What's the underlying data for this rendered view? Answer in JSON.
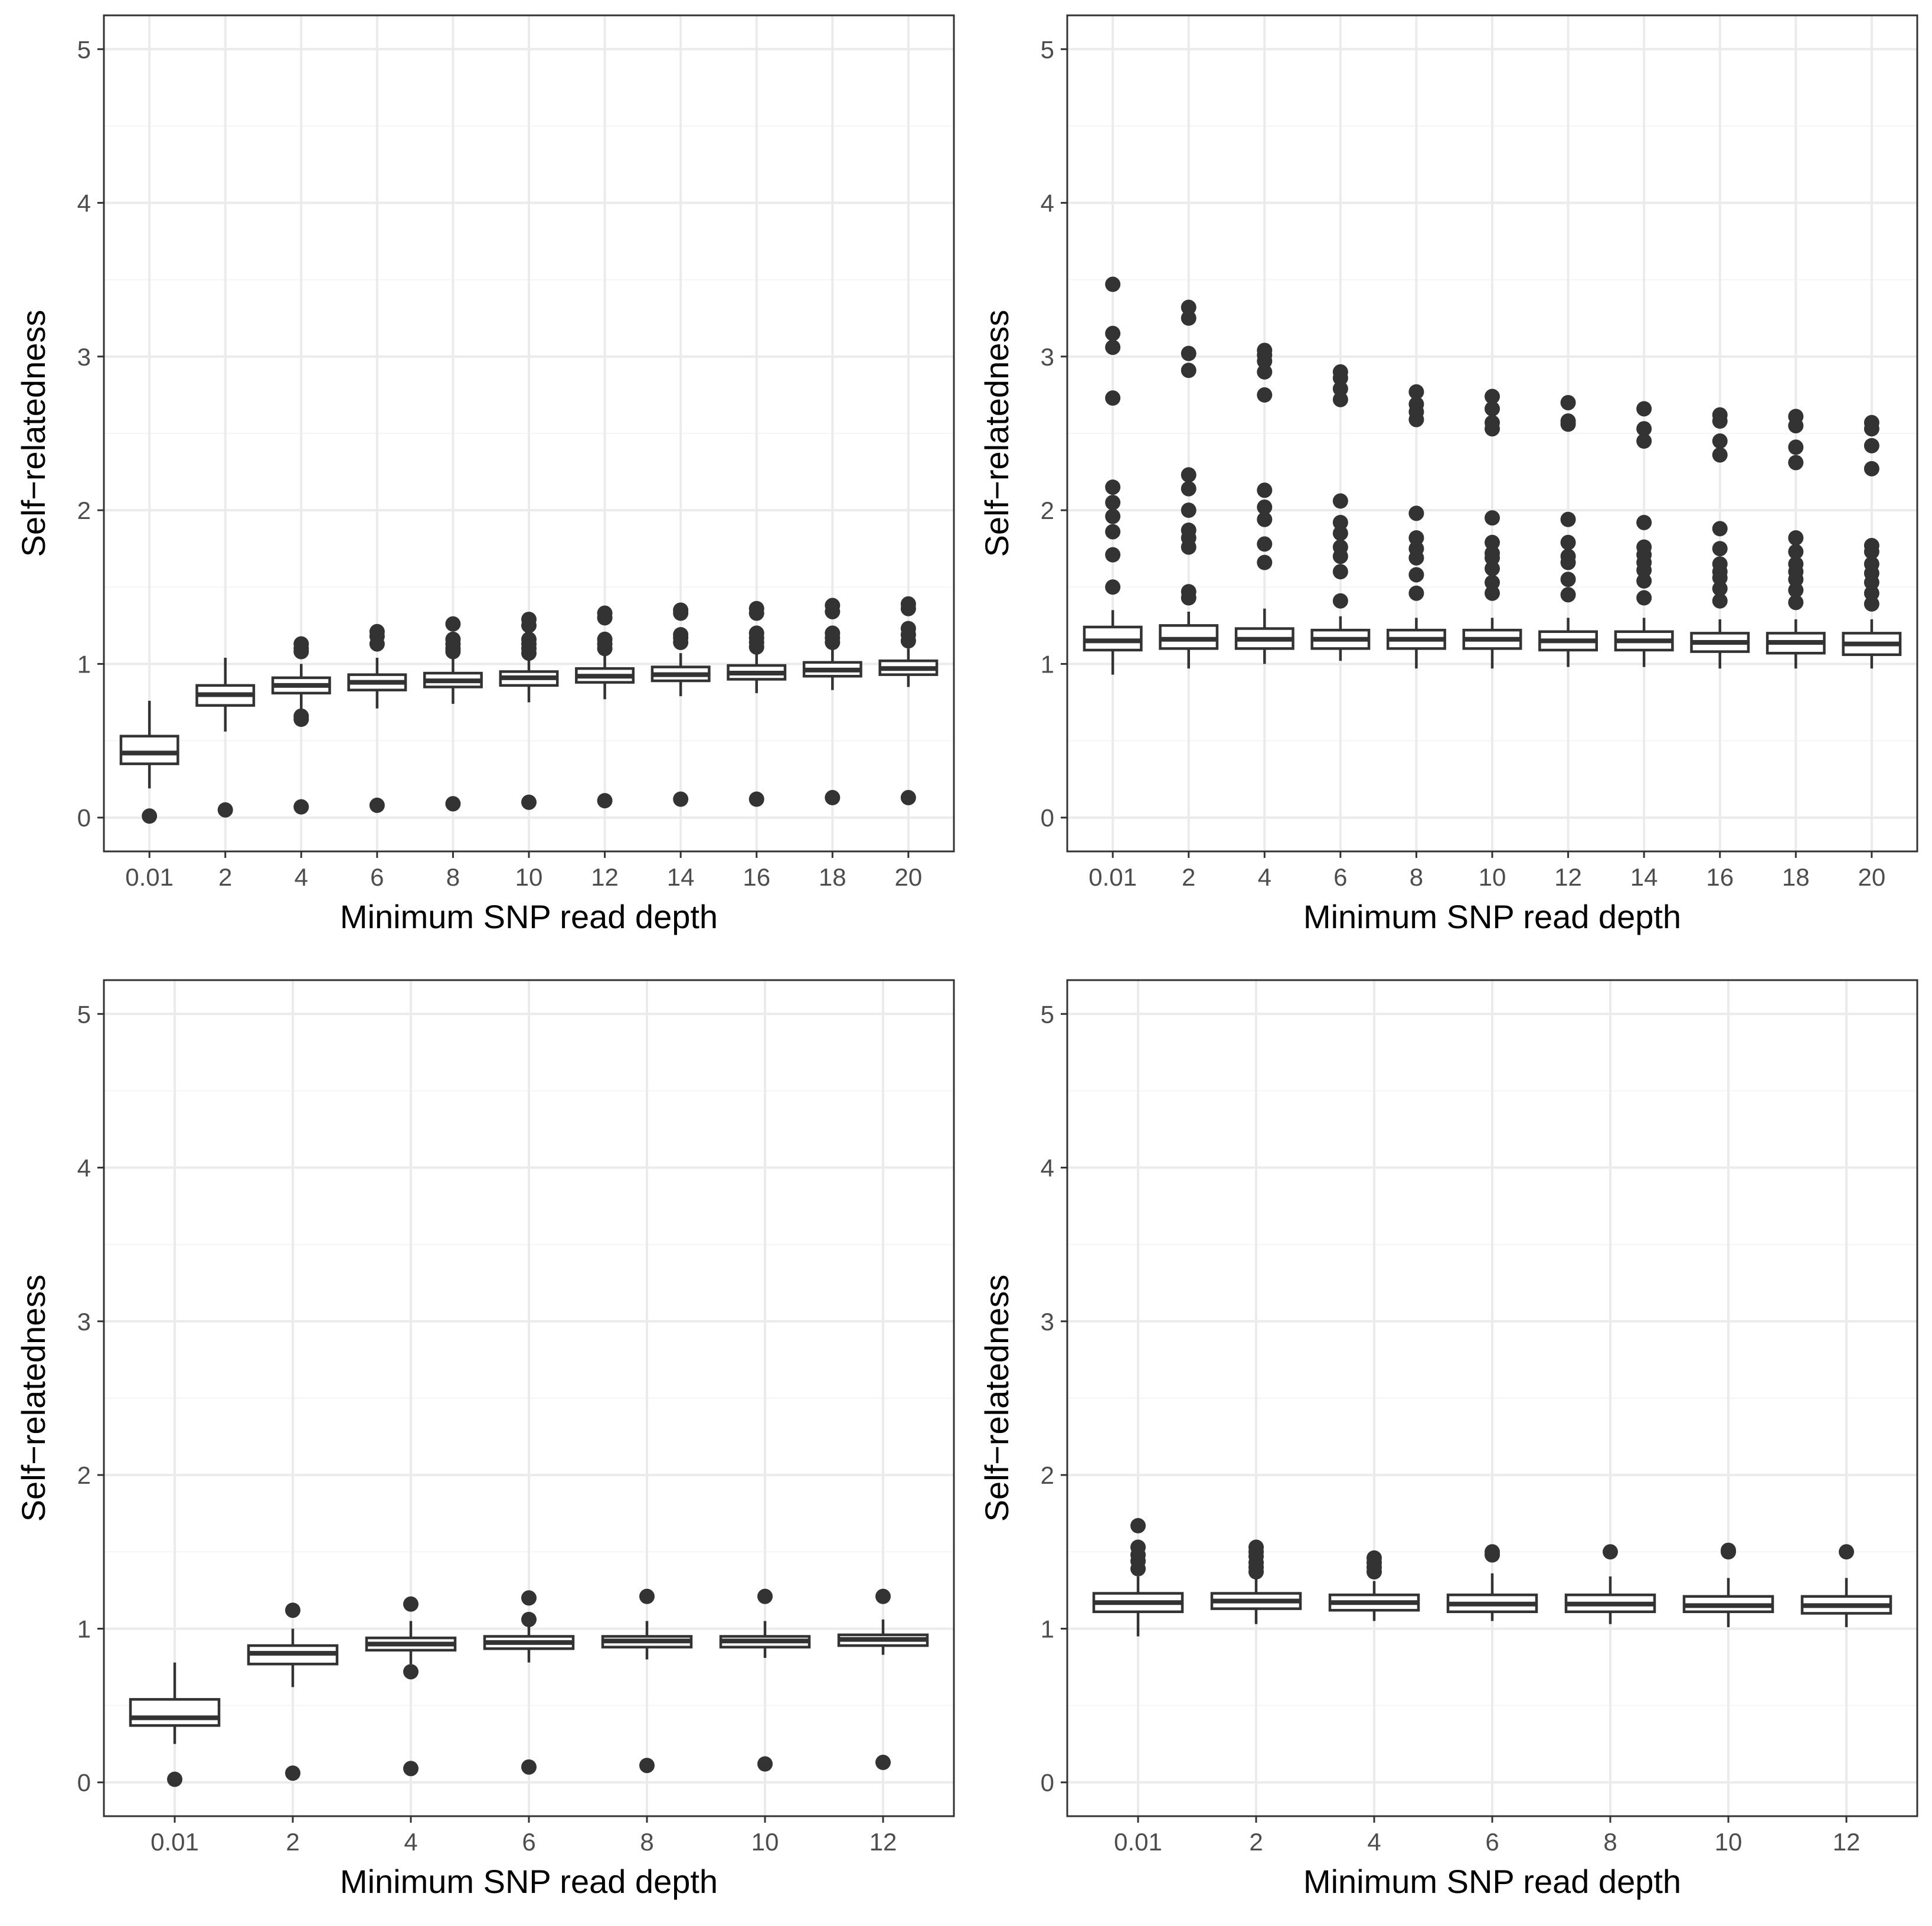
{
  "colors": {
    "background": "#ffffff",
    "panel_border": "#333333",
    "grid_major": "#ebebeb",
    "grid_minor": "#f5f5f5",
    "box_stroke": "#333333",
    "box_fill": "#ffffff",
    "point": "#333333"
  },
  "chart_data": [
    {
      "type": "box",
      "panel": "top-left",
      "xlabel": "Minimum SNP read depth",
      "ylabel": "Self−relatedness",
      "ylim": [
        -0.22,
        5.22
      ],
      "yticks": [
        "0",
        "1",
        "2",
        "3",
        "4",
        "5"
      ],
      "categories": [
        "0.01",
        "2",
        "4",
        "6",
        "8",
        "10",
        "12",
        "14",
        "16",
        "18",
        "20"
      ],
      "boxes": [
        {
          "min": 0.19,
          "q1": 0.35,
          "median": 0.42,
          "q3": 0.53,
          "max": 0.76,
          "outliers": [
            0.01
          ]
        },
        {
          "min": 0.56,
          "q1": 0.73,
          "median": 0.8,
          "q3": 0.86,
          "max": 1.04,
          "outliers": [
            0.05
          ]
        },
        {
          "min": 0.66,
          "q1": 0.81,
          "median": 0.86,
          "q3": 0.91,
          "max": 1.0,
          "outliers": [
            1.08,
            1.1,
            1.13,
            0.64,
            0.66,
            0.07
          ]
        },
        {
          "min": 0.71,
          "q1": 0.83,
          "median": 0.88,
          "q3": 0.93,
          "max": 1.04,
          "outliers": [
            1.13,
            1.18,
            1.21,
            0.08
          ]
        },
        {
          "min": 0.74,
          "q1": 0.85,
          "median": 0.89,
          "q3": 0.94,
          "max": 1.05,
          "outliers": [
            1.08,
            1.1,
            1.13,
            1.16,
            1.26,
            0.09
          ]
        },
        {
          "min": 0.75,
          "q1": 0.86,
          "median": 0.91,
          "q3": 0.95,
          "max": 1.05,
          "outliers": [
            1.07,
            1.1,
            1.13,
            1.16,
            1.25,
            1.29,
            0.1
          ]
        },
        {
          "min": 0.77,
          "q1": 0.88,
          "median": 0.92,
          "q3": 0.97,
          "max": 1.06,
          "outliers": [
            1.1,
            1.13,
            1.16,
            1.3,
            1.33,
            0.11
          ]
        },
        {
          "min": 0.79,
          "q1": 0.89,
          "median": 0.93,
          "q3": 0.98,
          "max": 1.07,
          "outliers": [
            1.14,
            1.17,
            1.19,
            1.33,
            1.35,
            0.12
          ]
        },
        {
          "min": 0.81,
          "q1": 0.9,
          "median": 0.94,
          "q3": 0.99,
          "max": 1.08,
          "outliers": [
            1.11,
            1.14,
            1.17,
            1.2,
            1.33,
            1.36,
            0.12
          ]
        },
        {
          "min": 0.83,
          "q1": 0.92,
          "median": 0.96,
          "q3": 1.01,
          "max": 1.1,
          "outliers": [
            1.14,
            1.17,
            1.2,
            1.34,
            1.38,
            0.13
          ]
        },
        {
          "min": 0.85,
          "q1": 0.93,
          "median": 0.97,
          "q3": 1.02,
          "max": 1.1,
          "outliers": [
            1.15,
            1.19,
            1.23,
            1.36,
            1.39,
            0.13
          ]
        }
      ]
    },
    {
      "type": "box",
      "panel": "top-right",
      "xlabel": "Minimum SNP read depth",
      "ylabel": "Self−relatedness",
      "ylim": [
        -0.22,
        5.22
      ],
      "yticks": [
        "0",
        "1",
        "2",
        "3",
        "4",
        "5"
      ],
      "categories": [
        "0.01",
        "2",
        "4",
        "6",
        "8",
        "10",
        "12",
        "14",
        "16",
        "18",
        "20"
      ],
      "boxes": [
        {
          "min": 0.93,
          "q1": 1.09,
          "median": 1.15,
          "q3": 1.24,
          "max": 1.35,
          "outliers": [
            1.5,
            1.71,
            1.86,
            1.96,
            2.05,
            2.15,
            2.73,
            3.06,
            3.15,
            3.47
          ]
        },
        {
          "min": 0.97,
          "q1": 1.1,
          "median": 1.16,
          "q3": 1.25,
          "max": 1.34,
          "outliers": [
            1.43,
            1.47,
            1.76,
            1.82,
            1.87,
            2.0,
            2.14,
            2.23,
            2.91,
            3.02,
            3.25,
            3.32
          ]
        },
        {
          "min": 1.0,
          "q1": 1.1,
          "median": 1.16,
          "q3": 1.23,
          "max": 1.36,
          "outliers": [
            1.66,
            1.78,
            1.94,
            2.02,
            2.13,
            2.75,
            2.9,
            2.97,
            3.01,
            3.04
          ]
        },
        {
          "min": 1.02,
          "q1": 1.1,
          "median": 1.16,
          "q3": 1.22,
          "max": 1.31,
          "outliers": [
            1.41,
            1.6,
            1.7,
            1.76,
            1.85,
            1.92,
            2.06,
            2.72,
            2.79,
            2.86,
            2.9
          ]
        },
        {
          "min": 0.97,
          "q1": 1.1,
          "median": 1.16,
          "q3": 1.22,
          "max": 1.3,
          "outliers": [
            1.46,
            1.58,
            1.69,
            1.75,
            1.82,
            1.98,
            2.59,
            2.64,
            2.69,
            2.77
          ]
        },
        {
          "min": 0.97,
          "q1": 1.1,
          "median": 1.16,
          "q3": 1.22,
          "max": 1.3,
          "outliers": [
            1.46,
            1.53,
            1.62,
            1.69,
            1.72,
            1.79,
            1.95,
            2.53,
            2.57,
            2.66,
            2.74
          ]
        },
        {
          "min": 0.98,
          "q1": 1.09,
          "median": 1.15,
          "q3": 1.21,
          "max": 1.3,
          "outliers": [
            1.45,
            1.55,
            1.66,
            1.7,
            1.79,
            1.94,
            2.56,
            2.58,
            2.7
          ]
        },
        {
          "min": 0.98,
          "q1": 1.09,
          "median": 1.15,
          "q3": 1.21,
          "max": 1.3,
          "outliers": [
            1.43,
            1.54,
            1.61,
            1.66,
            1.71,
            1.76,
            1.92,
            2.45,
            2.53,
            2.66
          ]
        },
        {
          "min": 0.97,
          "q1": 1.08,
          "median": 1.14,
          "q3": 1.2,
          "max": 1.29,
          "outliers": [
            1.41,
            1.49,
            1.56,
            1.6,
            1.65,
            1.75,
            1.88,
            2.36,
            2.45,
            2.58,
            2.62
          ]
        },
        {
          "min": 0.97,
          "q1": 1.07,
          "median": 1.14,
          "q3": 1.2,
          "max": 1.29,
          "outliers": [
            1.4,
            1.48,
            1.55,
            1.6,
            1.65,
            1.73,
            1.82,
            2.31,
            2.41,
            2.55,
            2.61
          ]
        },
        {
          "min": 0.97,
          "q1": 1.06,
          "median": 1.13,
          "q3": 1.2,
          "max": 1.29,
          "outliers": [
            1.39,
            1.46,
            1.53,
            1.59,
            1.65,
            1.73,
            1.77,
            2.27,
            2.42,
            2.53,
            2.57
          ]
        }
      ]
    },
    {
      "type": "box",
      "panel": "bottom-left",
      "xlabel": "Minimum SNP read depth",
      "ylabel": "Self−relatedness",
      "ylim": [
        -0.22,
        5.22
      ],
      "yticks": [
        "0",
        "1",
        "2",
        "3",
        "4",
        "5"
      ],
      "categories": [
        "0.01",
        "2",
        "4",
        "6",
        "8",
        "10",
        "12"
      ],
      "boxes": [
        {
          "min": 0.25,
          "q1": 0.37,
          "median": 0.42,
          "q3": 0.54,
          "max": 0.78,
          "outliers": [
            0.02
          ]
        },
        {
          "min": 0.62,
          "q1": 0.77,
          "median": 0.84,
          "q3": 0.89,
          "max": 1.0,
          "outliers": [
            1.12,
            0.06
          ]
        },
        {
          "min": 0.77,
          "q1": 0.86,
          "median": 0.9,
          "q3": 0.94,
          "max": 1.05,
          "outliers": [
            1.16,
            0.72,
            0.09
          ]
        },
        {
          "min": 0.78,
          "q1": 0.87,
          "median": 0.91,
          "q3": 0.95,
          "max": 1.02,
          "outliers": [
            1.06,
            1.2,
            0.1
          ]
        },
        {
          "min": 0.8,
          "q1": 0.88,
          "median": 0.92,
          "q3": 0.95,
          "max": 1.05,
          "outliers": [
            1.21,
            0.11
          ]
        },
        {
          "min": 0.81,
          "q1": 0.88,
          "median": 0.92,
          "q3": 0.95,
          "max": 1.05,
          "outliers": [
            1.21,
            0.12
          ]
        },
        {
          "min": 0.83,
          "q1": 0.89,
          "median": 0.93,
          "q3": 0.96,
          "max": 1.06,
          "outliers": [
            1.21,
            0.13
          ]
        }
      ]
    },
    {
      "type": "box",
      "panel": "bottom-right",
      "xlabel": "Minimum SNP read depth",
      "ylabel": "Self−relatedness",
      "ylim": [
        -0.22,
        5.22
      ],
      "yticks": [
        "0",
        "1",
        "2",
        "3",
        "4",
        "5"
      ],
      "categories": [
        "0.01",
        "2",
        "4",
        "6",
        "8",
        "10",
        "12"
      ],
      "boxes": [
        {
          "min": 0.95,
          "q1": 1.11,
          "median": 1.17,
          "q3": 1.23,
          "max": 1.34,
          "outliers": [
            1.39,
            1.44,
            1.48,
            1.53,
            1.67
          ]
        },
        {
          "min": 1.03,
          "q1": 1.13,
          "median": 1.18,
          "q3": 1.23,
          "max": 1.33,
          "outliers": [
            1.37,
            1.4,
            1.43,
            1.47,
            1.5,
            1.53
          ]
        },
        {
          "min": 1.05,
          "q1": 1.12,
          "median": 1.17,
          "q3": 1.22,
          "max": 1.31,
          "outliers": [
            1.37,
            1.4,
            1.43,
            1.46
          ]
        },
        {
          "min": 1.05,
          "q1": 1.11,
          "median": 1.16,
          "q3": 1.22,
          "max": 1.36,
          "outliers": [
            1.48,
            1.5
          ]
        },
        {
          "min": 1.03,
          "q1": 1.11,
          "median": 1.16,
          "q3": 1.22,
          "max": 1.34,
          "outliers": [
            1.5
          ]
        },
        {
          "min": 1.01,
          "q1": 1.11,
          "median": 1.15,
          "q3": 1.21,
          "max": 1.33,
          "outliers": [
            1.5,
            1.51
          ]
        },
        {
          "min": 1.01,
          "q1": 1.1,
          "median": 1.15,
          "q3": 1.21,
          "max": 1.33,
          "outliers": [
            1.5
          ]
        }
      ]
    }
  ]
}
